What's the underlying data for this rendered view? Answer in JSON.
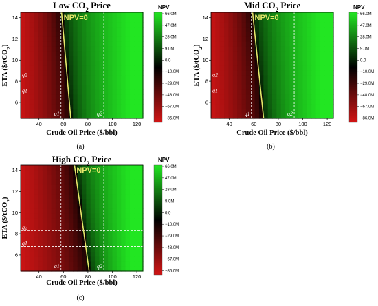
{
  "colorbar_title": "NPV",
  "colorbar_ticks": [
    "66.0M",
    "47.0M",
    "28.0M",
    "9.0M",
    "0.0",
    "−10.0M",
    "−29.0M",
    "−48.0M",
    "−67.0M",
    "−86.0M"
  ],
  "colors": {
    "negative_low": "#d31515",
    "zero": "#000000",
    "positive_high": "#22e622",
    "breakeven_line": "#e6e86a",
    "reference_line": "#ffffff"
  },
  "chart_data": [
    {
      "type": "heatmap",
      "panel": "(a)",
      "title_main": "Low CO",
      "title_sub": "2",
      "title_end": " Price",
      "xlabel": "Crude Oil Price ($/bbl)",
      "ylabel_main": "ETA ($/tCO",
      "ylabel_sub": "2",
      "ylabel_end": ")",
      "xlim": [
        25,
        125
      ],
      "ylim": [
        4.5,
        14.5
      ],
      "xticks": [
        40,
        60,
        80,
        100,
        120
      ],
      "yticks": [
        6,
        8,
        10,
        12,
        14
      ],
      "zero_label": "NPV=0",
      "zero_line": [
        [
          66,
          4.5
        ],
        [
          58.5,
          14.5
        ]
      ],
      "ref_x": [
        {
          "label": "q1",
          "value": 58
        },
        {
          "label": "q2",
          "value": 93
        }
      ],
      "ref_y": [
        {
          "label": "q1",
          "value": 6.8
        },
        {
          "label": "q2",
          "value": 8.3
        }
      ],
      "colorbar_range": [
        -86,
        66
      ]
    },
    {
      "type": "heatmap",
      "panel": "(b)",
      "title_main": "Mid CO",
      "title_sub": "2",
      "title_end": " Price",
      "xlabel": "Crude Oil Price ($/bbl)",
      "ylabel_main": "ETA ($/tCO",
      "ylabel_sub": "2",
      "ylabel_end": ")",
      "xlim": [
        25,
        125
      ],
      "ylim": [
        4.5,
        14.5
      ],
      "xticks": [
        40,
        60,
        80,
        100,
        120
      ],
      "yticks": [
        6,
        8,
        10,
        12,
        14
      ],
      "zero_label": "NPV=0",
      "zero_line": [
        [
          68,
          4.5
        ],
        [
          59,
          14.5
        ]
      ],
      "ref_x": [
        {
          "label": "q1",
          "value": 58
        },
        {
          "label": "q2",
          "value": 93
        }
      ],
      "ref_y": [
        {
          "label": "q1",
          "value": 6.8
        },
        {
          "label": "q2",
          "value": 8.3
        }
      ],
      "colorbar_range": [
        -86,
        66
      ]
    },
    {
      "type": "heatmap",
      "panel": "(c)",
      "title_main": "High CO",
      "title_sub": "2",
      "title_end": " Price",
      "xlabel": "Crude Oil Price ($/bbl)",
      "ylabel_main": "ETA ($/tCO",
      "ylabel_sub": "2",
      "ylabel_end": ")",
      "xlim": [
        25,
        125
      ],
      "ylim": [
        4.5,
        14.5
      ],
      "xticks": [
        40,
        60,
        80,
        100,
        120
      ],
      "yticks": [
        6,
        8,
        10,
        12,
        14
      ],
      "zero_label": "NPV=0",
      "zero_line": [
        [
          81,
          4.5
        ],
        [
          69,
          14.5
        ]
      ],
      "ref_x": [
        {
          "label": "q1",
          "value": 58
        },
        {
          "label": "q2",
          "value": 93
        }
      ],
      "ref_y": [
        {
          "label": "q1",
          "value": 6.8
        },
        {
          "label": "q2",
          "value": 8.3
        }
      ],
      "colorbar_range": [
        -86,
        66
      ]
    }
  ]
}
